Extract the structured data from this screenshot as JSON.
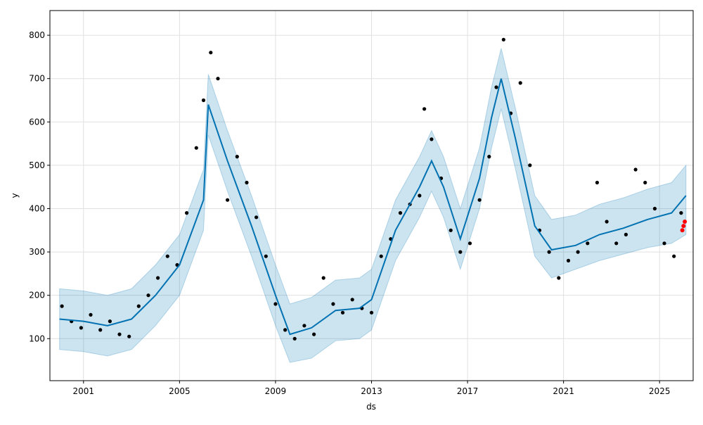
{
  "chart_data": {
    "type": "scatter",
    "title": "",
    "xlabel": "ds",
    "ylabel": "y",
    "xlim": [
      1999.6,
      2026.4
    ],
    "ylim": [
      3,
      857
    ],
    "x_ticks": [
      2001,
      2005,
      2009,
      2013,
      2017,
      2021,
      2025
    ],
    "x_tick_labels": [
      "2001",
      "2005",
      "2009",
      "2013",
      "2017",
      "2021",
      "2025"
    ],
    "y_ticks": [
      100,
      200,
      300,
      400,
      500,
      600,
      700,
      800
    ],
    "y_tick_labels": [
      "100",
      "200",
      "300",
      "400",
      "500",
      "600",
      "700",
      "800"
    ],
    "grid": true,
    "legend": "none",
    "colors": {
      "observed": "#000000",
      "forecast_line": "#0072B2",
      "uncertainty_band": "#0072B2",
      "highlight": "#ff0000"
    },
    "series": [
      {
        "role": "observed-points",
        "x": [
          2000.1,
          2000.5,
          2000.9,
          2001.3,
          2001.7,
          2002.1,
          2002.5,
          2002.9,
          2003.3,
          2003.7,
          2004.1,
          2004.5,
          2004.9,
          2005.3,
          2005.7,
          2006.0,
          2006.3,
          2006.6,
          2007.0,
          2007.4,
          2007.8,
          2008.2,
          2008.6,
          2009.0,
          2009.4,
          2009.8,
          2010.2,
          2010.6,
          2011.0,
          2011.4,
          2011.8,
          2012.2,
          2012.6,
          2013.0,
          2013.4,
          2013.8,
          2014.2,
          2014.6,
          2015.0,
          2015.2,
          2015.5,
          2015.9,
          2016.3,
          2016.7,
          2017.1,
          2017.5,
          2017.9,
          2018.2,
          2018.5,
          2018.8,
          2019.2,
          2019.6,
          2020.0,
          2020.4,
          2020.8,
          2021.2,
          2021.6,
          2022.0,
          2022.4,
          2022.8,
          2023.2,
          2023.6,
          2024.0,
          2024.4,
          2024.8,
          2025.2,
          2025.6,
          2025.9
        ],
        "y": [
          175,
          140,
          125,
          155,
          120,
          140,
          110,
          105,
          175,
          200,
          240,
          290,
          270,
          390,
          540,
          650,
          760,
          700,
          420,
          520,
          460,
          380,
          290,
          180,
          120,
          100,
          130,
          110,
          240,
          180,
          160,
          190,
          170,
          160,
          290,
          330,
          390,
          410,
          430,
          630,
          560,
          470,
          350,
          300,
          320,
          420,
          520,
          680,
          790,
          620,
          690,
          500,
          350,
          300,
          240,
          280,
          300,
          320,
          460,
          370,
          320,
          340,
          490,
          460,
          400,
          320,
          290,
          390
        ]
      },
      {
        "role": "forecast-line",
        "x": [
          2000.0,
          2001.0,
          2002.0,
          2003.0,
          2004.0,
          2005.0,
          2006.0,
          2006.2,
          2007.0,
          2008.0,
          2009.0,
          2009.6,
          2010.5,
          2011.5,
          2012.5,
          2013.0,
          2014.0,
          2015.0,
          2015.5,
          2016.0,
          2016.7,
          2017.5,
          2018.0,
          2018.4,
          2019.0,
          2019.8,
          2020.5,
          2021.5,
          2022.5,
          2023.5,
          2024.5,
          2025.5,
          2026.1
        ],
        "y": [
          145,
          140,
          130,
          145,
          200,
          270,
          420,
          640,
          510,
          360,
          200,
          110,
          125,
          165,
          170,
          190,
          350,
          450,
          510,
          450,
          330,
          470,
          610,
          700,
          560,
          360,
          305,
          315,
          340,
          355,
          375,
          390,
          430
        ]
      },
      {
        "role": "uncertainty-lower",
        "x": [
          2000.0,
          2001.0,
          2002.0,
          2003.0,
          2004.0,
          2005.0,
          2006.0,
          2006.2,
          2007.0,
          2008.0,
          2009.0,
          2009.6,
          2010.5,
          2011.5,
          2012.5,
          2013.0,
          2014.0,
          2015.0,
          2015.5,
          2016.0,
          2016.7,
          2017.5,
          2018.0,
          2018.4,
          2019.0,
          2019.8,
          2020.5,
          2021.5,
          2022.5,
          2023.5,
          2024.5,
          2025.5,
          2026.1
        ],
        "y": [
          75,
          70,
          60,
          75,
          130,
          200,
          350,
          570,
          440,
          290,
          130,
          45,
          55,
          95,
          100,
          120,
          280,
          380,
          440,
          380,
          260,
          400,
          540,
          630,
          490,
          290,
          240,
          260,
          280,
          295,
          310,
          320,
          340
        ]
      },
      {
        "role": "uncertainty-upper",
        "x": [
          2000.0,
          2001.0,
          2002.0,
          2003.0,
          2004.0,
          2005.0,
          2006.0,
          2006.2,
          2007.0,
          2008.0,
          2009.0,
          2009.6,
          2010.5,
          2011.5,
          2012.5,
          2013.0,
          2014.0,
          2015.0,
          2015.5,
          2016.0,
          2016.7,
          2017.5,
          2018.0,
          2018.4,
          2019.0,
          2019.8,
          2020.5,
          2021.5,
          2022.5,
          2023.5,
          2024.5,
          2025.5,
          2026.1
        ],
        "y": [
          215,
          210,
          200,
          215,
          270,
          340,
          490,
          710,
          580,
          430,
          270,
          180,
          195,
          235,
          240,
          260,
          420,
          520,
          580,
          520,
          400,
          540,
          680,
          770,
          630,
          430,
          375,
          385,
          410,
          425,
          445,
          460,
          500
        ]
      },
      {
        "role": "highlight-points",
        "x": [
          2025.95,
          2026.0,
          2026.05
        ],
        "y": [
          350,
          360,
          370
        ]
      }
    ]
  }
}
